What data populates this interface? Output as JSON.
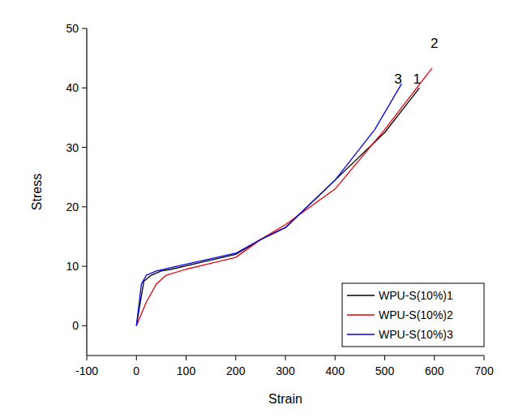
{
  "chart_data": {
    "type": "line",
    "x_label": "Strain",
    "y_label": "Stress",
    "xlim": [
      -100,
      700
    ],
    "xticks": [
      -100,
      0,
      100,
      200,
      300,
      400,
      500,
      600,
      700
    ],
    "ylim": [
      -5,
      50
    ],
    "yticks": [
      0,
      10,
      20,
      30,
      40,
      50
    ],
    "grid": false,
    "legend": "lower right",
    "series": [
      {
        "name": "WPU-S(10%)1",
        "color": "#000000",
        "x": [
          0,
          15,
          30,
          50,
          70,
          200,
          250,
          300,
          400,
          500,
          570
        ],
        "values": [
          0,
          7.5,
          8.5,
          9.2,
          9.5,
          12,
          14.5,
          16.5,
          24.5,
          32.5,
          40
        ]
      },
      {
        "name": "WPU-S(10%)2",
        "color": "#e8000b",
        "x": [
          0,
          20,
          40,
          60,
          100,
          200,
          250,
          300,
          400,
          500,
          595
        ],
        "values": [
          0,
          4,
          7,
          8.5,
          9.5,
          11.5,
          14.5,
          17,
          23,
          33,
          43.3
        ]
      },
      {
        "name": "WPU-S(10%)3",
        "color": "#0000e6",
        "x": [
          0,
          10,
          20,
          40,
          70,
          200,
          250,
          300,
          400,
          480,
          534
        ],
        "values": [
          0,
          7,
          8.5,
          9.2,
          9.8,
          12.2,
          14.5,
          16.5,
          24.5,
          33,
          40.7
        ]
      }
    ],
    "annotations": [
      {
        "text": "3",
        "x": 527,
        "y": 41.5
      },
      {
        "text": "1",
        "x": 565,
        "y": 41.5
      },
      {
        "text": "2",
        "x": 600,
        "y": 47.5
      }
    ]
  }
}
